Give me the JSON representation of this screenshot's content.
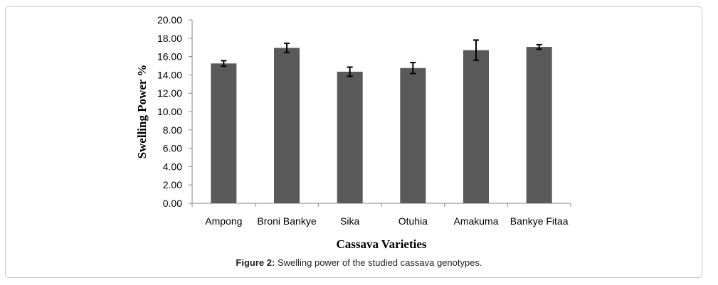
{
  "chart_data": {
    "type": "bar",
    "title": "",
    "xlabel": "Cassava Varieties",
    "ylabel": "Swelling Power %",
    "categories": [
      "Ampong",
      "Broni Bankye",
      "Sika",
      "Otuhia",
      "Amakuma",
      "Bankye Fitaa"
    ],
    "values": [
      15.25,
      16.95,
      14.35,
      14.75,
      16.7,
      17.05
    ],
    "errors": [
      0.3,
      0.5,
      0.5,
      0.6,
      1.1,
      0.25
    ],
    "ylim": [
      0,
      20
    ],
    "yticks": [
      "0.00",
      "2.00",
      "4.00",
      "6.00",
      "8.00",
      "10.00",
      "12.00",
      "14.00",
      "16.00",
      "18.00",
      "20.00"
    ],
    "grid": false,
    "bar_color": "#595959",
    "error_color": "#000000"
  },
  "caption": {
    "label": "Figure 2:",
    "text": " Swelling power of the studied cassava genotypes."
  }
}
